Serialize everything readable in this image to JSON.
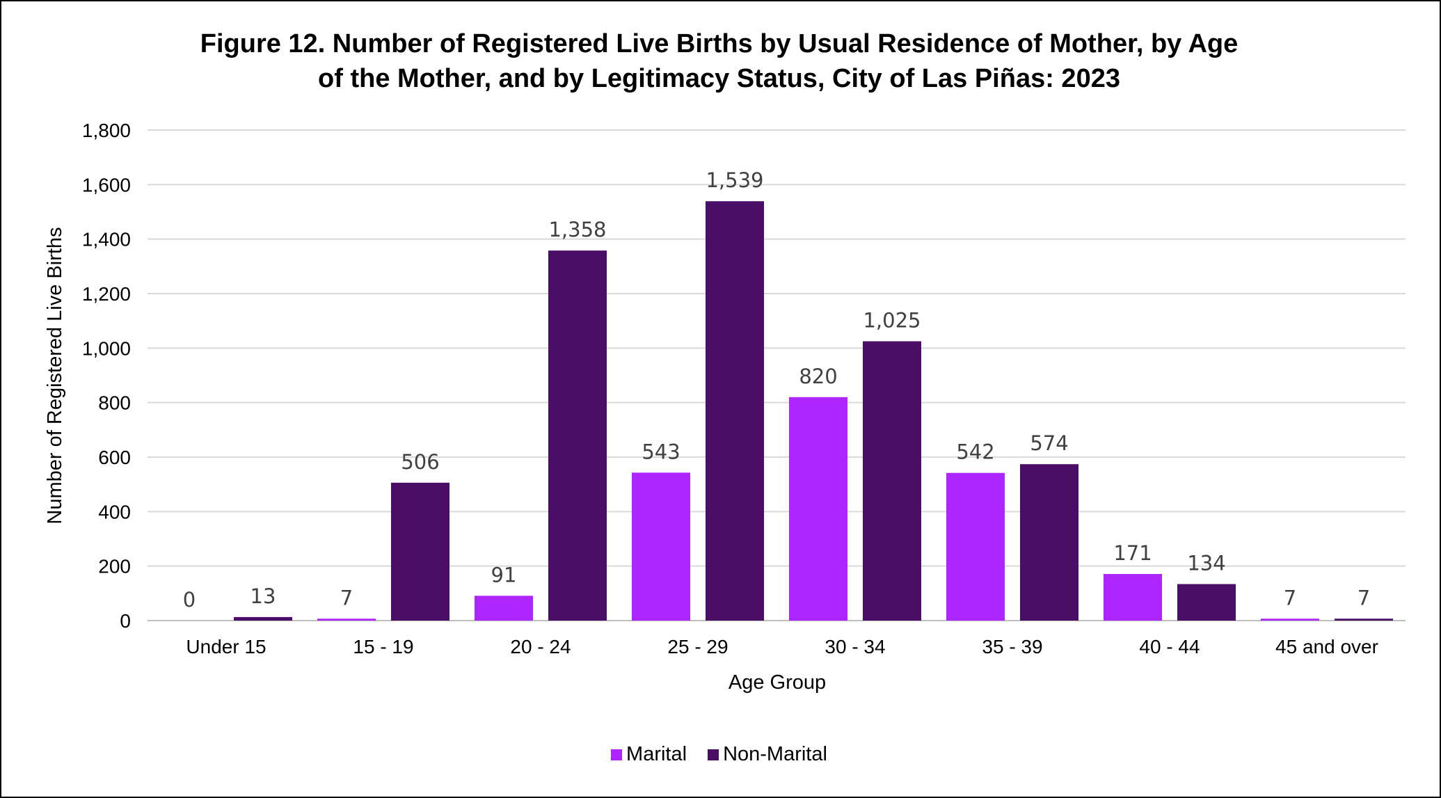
{
  "chart_data": {
    "type": "bar",
    "title_line1": "Figure 12. Number of Registered Live Births by Usual Residence of Mother, by Age",
    "title_line2": "of the Mother, and by Legitimacy Status, City of Las Piñas: 2023",
    "xlabel": "Age Group",
    "ylabel": "Number of Registered Live Births",
    "ylim": [
      0,
      1800
    ],
    "ytick_step": 200,
    "yticks": [
      "0",
      "200",
      "400",
      "600",
      "800",
      "1,000",
      "1,200",
      "1,400",
      "1,600",
      "1,800"
    ],
    "grid": true,
    "legend_position": "bottom",
    "categories": [
      "Under 15",
      "15 - 19",
      "20 - 24",
      "25 - 29",
      "30 - 34",
      "35 - 39",
      "40 - 44",
      "45 and over"
    ],
    "series": [
      {
        "name": "Marital",
        "color": "#ad25ff",
        "values": [
          0,
          7,
          91,
          543,
          820,
          542,
          171,
          7
        ],
        "labels": [
          "0",
          "7",
          "91",
          "543",
          "820",
          "542",
          "171",
          "7"
        ]
      },
      {
        "name": "Non-Marital",
        "color": "#4a0e66",
        "values": [
          13,
          506,
          1358,
          1539,
          1025,
          574,
          134,
          7
        ],
        "labels": [
          "13",
          "506",
          "1,358",
          "1,539",
          "1,025",
          "574",
          "134",
          "7"
        ]
      }
    ]
  }
}
